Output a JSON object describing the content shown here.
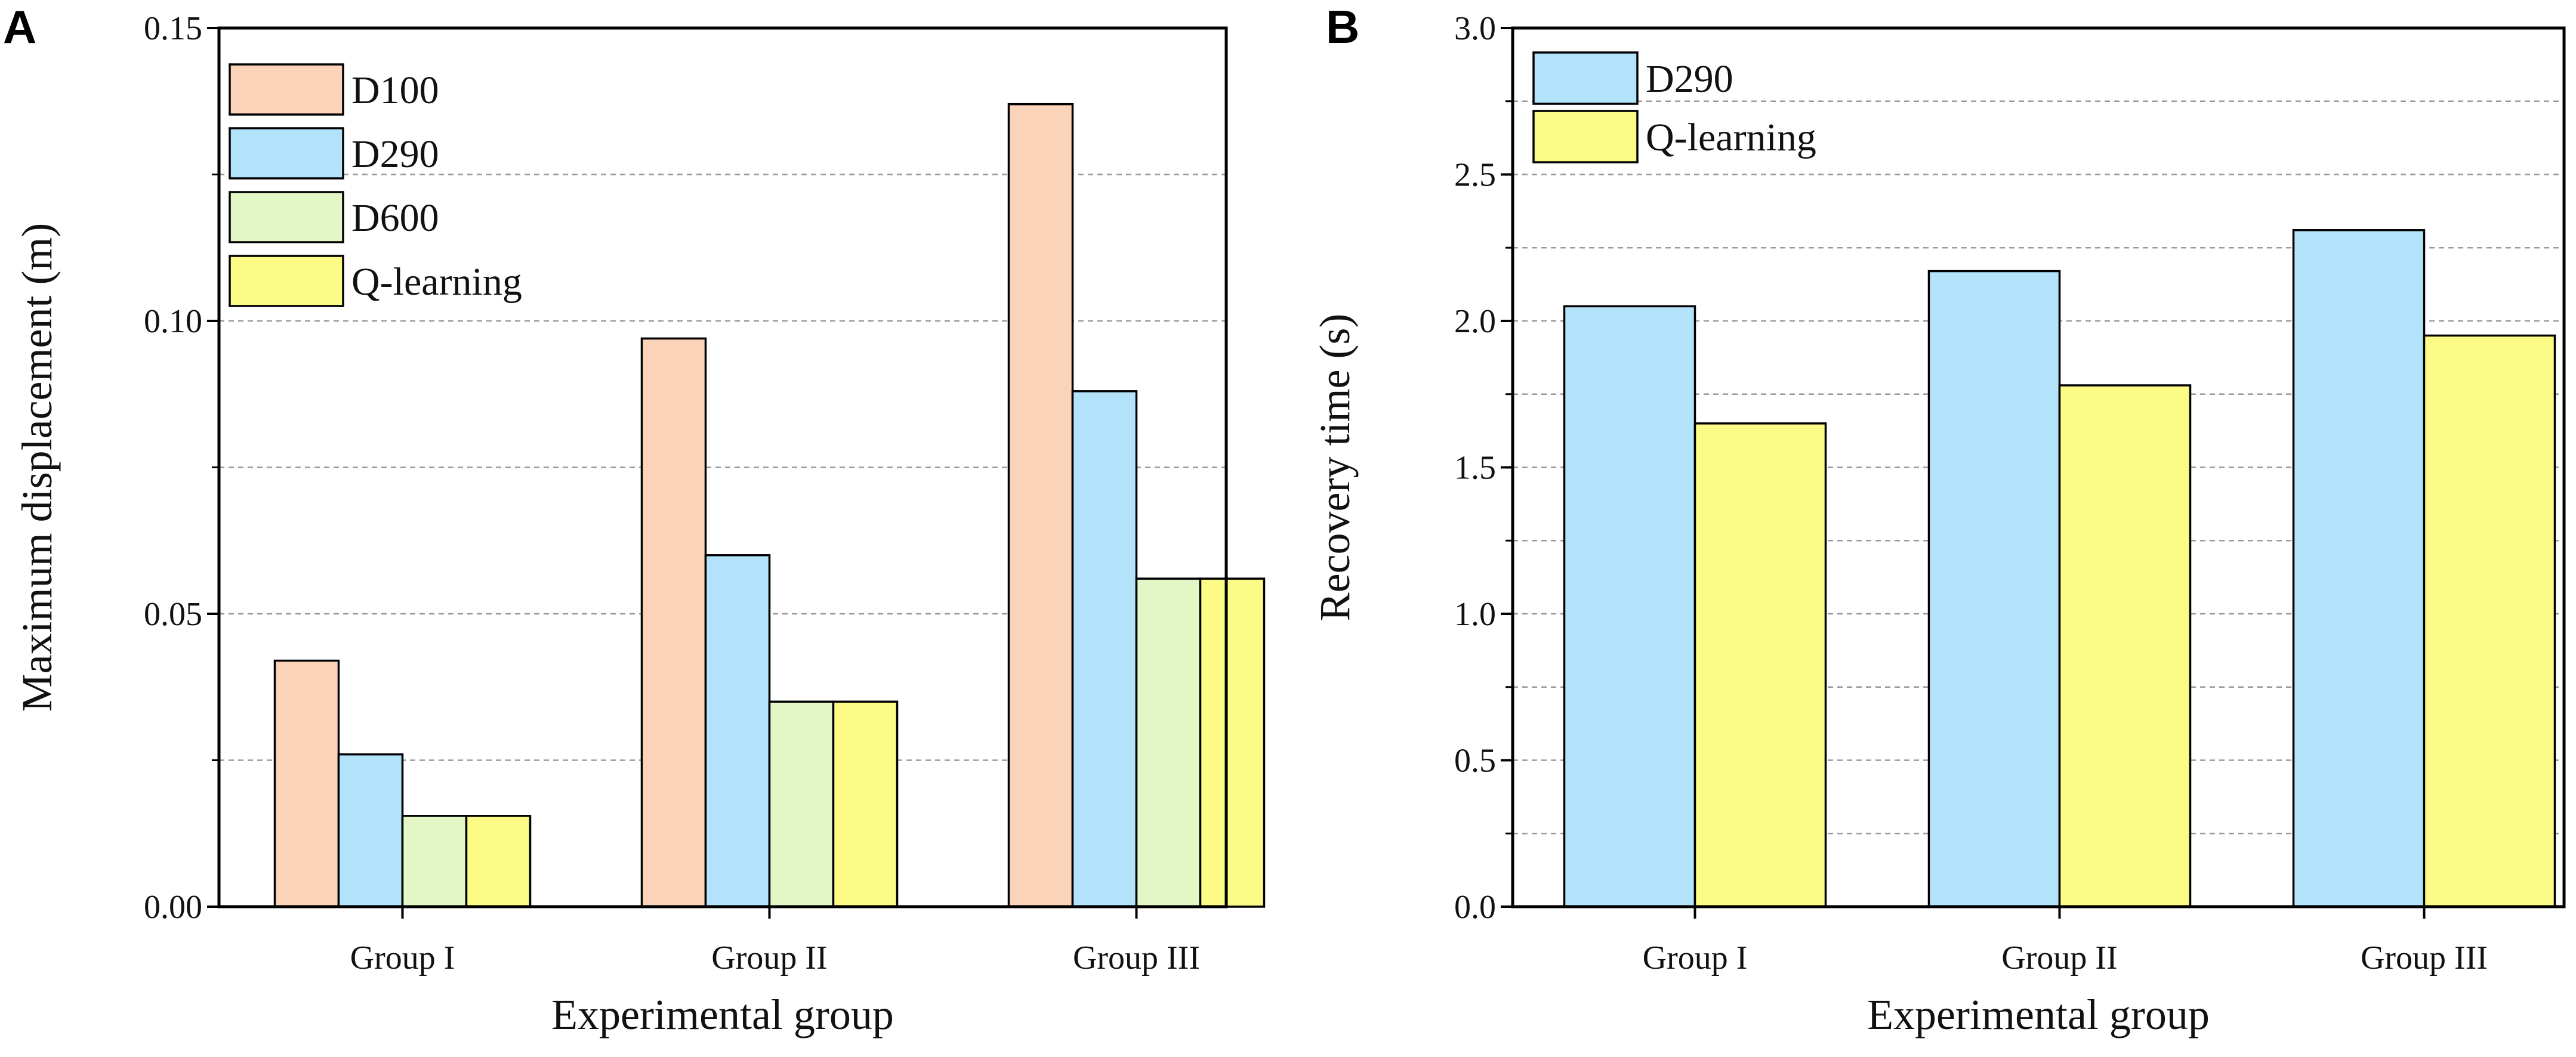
{
  "chart_data": [
    {
      "panel_label": "A",
      "type": "bar",
      "categories": [
        "Group I",
        "Group II",
        "Group III"
      ],
      "series": [
        {
          "name": "D100",
          "values": [
            0.042,
            0.097,
            0.137
          ],
          "color": "#FAD3B8"
        },
        {
          "name": "D290",
          "values": [
            0.026,
            0.06,
            0.088
          ],
          "color": "#B3E3FA"
        },
        {
          "name": "D600",
          "values": [
            0.0155,
            0.035,
            0.056
          ],
          "color": "#E3F7C6"
        },
        {
          "name": "Q-learning",
          "values": [
            0.0155,
            0.035,
            0.056
          ],
          "color": "#FBFB86"
        }
      ],
      "xlabel": "Experimental group",
      "ylabel": "Maximum displacement (m)",
      "ylim": [
        0,
        0.15
      ],
      "yticks": [
        "0.00",
        "0.05",
        "0.10",
        "0.15"
      ],
      "grid": true,
      "legend_position": "top-left"
    },
    {
      "panel_label": "B",
      "type": "bar",
      "categories": [
        "Group I",
        "Group II",
        "Group III"
      ],
      "series": [
        {
          "name": "D290",
          "values": [
            2.05,
            2.17,
            2.31
          ],
          "color": "#B3E3FA"
        },
        {
          "name": "Q-learning",
          "values": [
            1.65,
            1.78,
            1.95
          ],
          "color": "#FBFB86"
        }
      ],
      "xlabel": "Experimental group",
      "ylabel": "Recovery time (s)",
      "ylim": [
        0,
        3.0
      ],
      "yticks": [
        "0.0",
        "0.5",
        "1.0",
        "1.5",
        "2.0",
        "2.5",
        "3.0"
      ],
      "grid": true,
      "legend_position": "top-left"
    }
  ]
}
